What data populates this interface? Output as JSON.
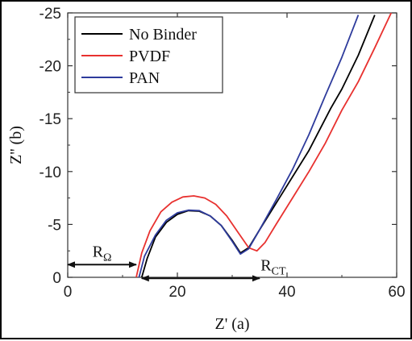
{
  "chart_data": {
    "type": "line",
    "xlabel": "Z' (a)",
    "ylabel": "Z'' (b)",
    "xlim": [
      0,
      60
    ],
    "ylim": [
      0,
      -25
    ],
    "x_ticks": [
      0,
      20,
      40,
      60
    ],
    "y_ticks": [
      0,
      -5,
      -10,
      -15,
      -20,
      -25
    ],
    "grid": false,
    "legend_position": "top-left",
    "series": [
      {
        "name": "No Binder",
        "color": "#000000",
        "x": [
          13.5,
          14.5,
          16,
          18,
          20,
          22,
          24,
          26,
          28,
          30,
          31.5,
          33,
          35,
          38,
          41,
          44,
          46,
          48,
          50,
          53,
          56
        ],
        "y": [
          0.0,
          -1.8,
          -3.8,
          -5.2,
          -5.95,
          -6.3,
          -6.25,
          -5.8,
          -4.9,
          -3.5,
          -2.3,
          -2.8,
          -4.5,
          -7.0,
          -9.5,
          -12.0,
          -14.0,
          -16.0,
          -17.8,
          -21.0,
          -24.8
        ]
      },
      {
        "name": "PVDF",
        "color": "#e8312f",
        "x": [
          12.5,
          13.5,
          15,
          17,
          19,
          21,
          23,
          25,
          27,
          29,
          31,
          33,
          34.5,
          36,
          38,
          41,
          44,
          47,
          50,
          53,
          56,
          59
        ],
        "y": [
          0.0,
          -2.3,
          -4.4,
          -6.2,
          -7.1,
          -7.6,
          -7.7,
          -7.5,
          -6.9,
          -5.8,
          -4.3,
          -2.8,
          -2.5,
          -3.3,
          -5.0,
          -7.5,
          -10.0,
          -12.7,
          -15.8,
          -18.5,
          -21.7,
          -25.0
        ]
      },
      {
        "name": "PAN",
        "color": "#2e3b9c",
        "x": [
          13.0,
          14,
          16,
          18,
          20,
          22,
          24,
          26,
          28,
          30,
          31.5,
          33,
          35,
          38,
          41,
          44,
          47,
          50,
          53
        ],
        "y": [
          0.0,
          -2.0,
          -4.0,
          -5.4,
          -6.1,
          -6.35,
          -6.3,
          -5.8,
          -4.9,
          -3.4,
          -2.2,
          -2.7,
          -4.5,
          -7.3,
          -10.2,
          -13.5,
          -17.2,
          -20.8,
          -24.8
        ]
      }
    ],
    "annotations": [
      {
        "label": "R",
        "subscript": "Ω",
        "x_start": 0,
        "x_end": 12.5,
        "y": -1.2
      },
      {
        "label": "R",
        "subscript": "CT",
        "x_start": 13.5,
        "x_end": 35,
        "y": 0.1
      }
    ]
  }
}
